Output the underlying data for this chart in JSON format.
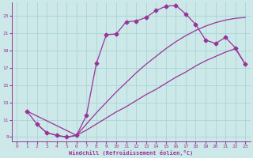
{
  "bg_color": "#cce8e8",
  "grid_color": "#aad4d4",
  "line_color": "#993399",
  "xlabel": "Windchill (Refroidissement éolien,°C)",
  "xlim_min": -0.5,
  "xlim_max": 23.5,
  "ylim_min": 8.5,
  "ylim_max": 24.5,
  "xticks": [
    0,
    1,
    2,
    3,
    4,
    5,
    6,
    7,
    8,
    9,
    10,
    11,
    12,
    13,
    14,
    15,
    16,
    17,
    18,
    19,
    20,
    21,
    22,
    23
  ],
  "yticks": [
    9,
    11,
    13,
    15,
    17,
    19,
    21,
    23
  ],
  "curve1_x": [
    1,
    2,
    3,
    4,
    5,
    6,
    7,
    8,
    9,
    10,
    11,
    12,
    13,
    14,
    15,
    16,
    17,
    18,
    19,
    20,
    21,
    22,
    23
  ],
  "curve1_y": [
    12.0,
    10.5,
    9.5,
    9.2,
    9.0,
    9.2,
    11.5,
    17.5,
    20.8,
    20.9,
    22.3,
    22.4,
    22.8,
    23.6,
    24.1,
    24.2,
    23.2,
    22.0,
    20.2,
    19.8,
    20.5,
    19.3,
    17.4
  ],
  "line_upper_x": [
    1,
    6,
    7,
    8,
    9,
    10,
    11,
    12,
    13,
    14,
    15,
    16,
    17,
    18,
    19,
    20,
    21,
    22,
    23
  ],
  "line_upper_y": [
    12.0,
    9.2,
    10.5,
    11.8,
    13.0,
    14.2,
    15.3,
    16.4,
    17.4,
    18.3,
    19.2,
    20.0,
    20.7,
    21.3,
    21.8,
    22.2,
    22.5,
    22.7,
    22.8
  ],
  "line_lower_x": [
    2,
    3,
    4,
    5,
    6,
    7,
    8,
    9,
    10,
    11,
    12,
    13,
    14,
    15,
    16,
    17,
    18,
    19,
    20,
    21,
    22,
    23
  ],
  "line_lower_y": [
    10.5,
    9.5,
    9.2,
    9.0,
    9.2,
    9.8,
    10.5,
    11.2,
    11.9,
    12.5,
    13.2,
    13.9,
    14.5,
    15.2,
    15.9,
    16.5,
    17.2,
    17.8,
    18.3,
    18.8,
    19.2,
    17.4
  ]
}
